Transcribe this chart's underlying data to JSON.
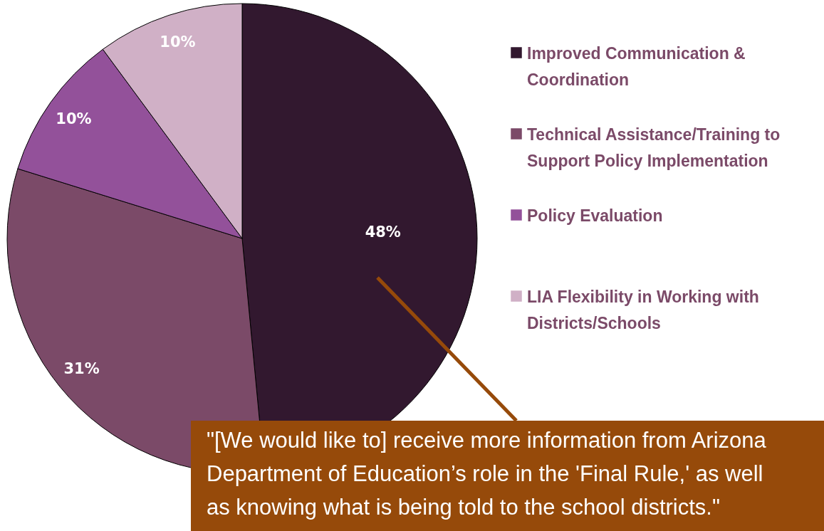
{
  "chart_data": {
    "type": "pie",
    "categories": [
      "Improved Communication & Coordination",
      "Technical Assistance/Training to Support Policy Implementation",
      "Policy Evaluation",
      "LIA Flexibility in Working with Districts/Schools"
    ],
    "values": [
      48,
      31,
      10,
      10
    ],
    "colors": [
      "#32182f",
      "#7b4a68",
      "#93519a",
      "#d0b0c6"
    ],
    "value_labels": [
      "48%",
      "31%",
      "10%",
      "10%"
    ],
    "legend": "right",
    "annotations": [
      "\"[We would like to] receive more information from Arizona Department of Education’s role in the 'Final Rule,' as well as knowing what is being told to the school districts.\""
    ]
  }
}
